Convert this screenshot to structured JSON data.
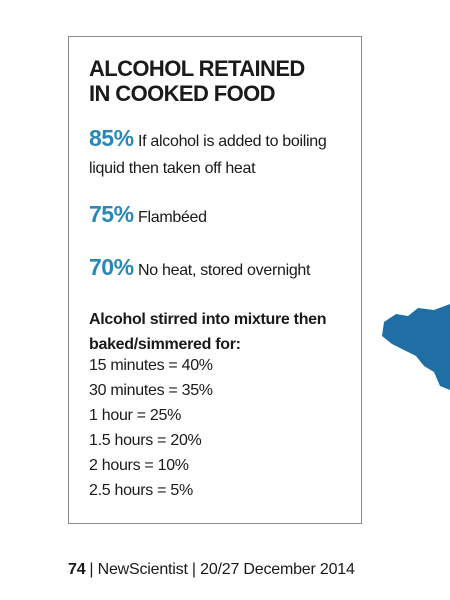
{
  "box": {
    "title_lines": [
      "ALCOHOL RETAINED",
      "IN COOKED FOOD"
    ],
    "items": [
      {
        "percent": "85%",
        "text": "If alcohol is added to boiling liquid then taken off heat"
      },
      {
        "percent": "75%",
        "text": "Flambéed"
      },
      {
        "percent": "70%",
        "text": "No heat, stored overnight"
      }
    ],
    "subheading": "Alcohol stirred into mixture then baked/simmered for:",
    "lines": [
      "15 minutes = 40%",
      "30 minutes = 35%",
      "1 hour = 25%",
      "1.5 hours = 20%",
      "2 hours = 10%",
      "2.5 hours = 5%"
    ]
  },
  "footer": {
    "page": "74",
    "rest": "| NewScientist | 20/27 December 2014"
  }
}
